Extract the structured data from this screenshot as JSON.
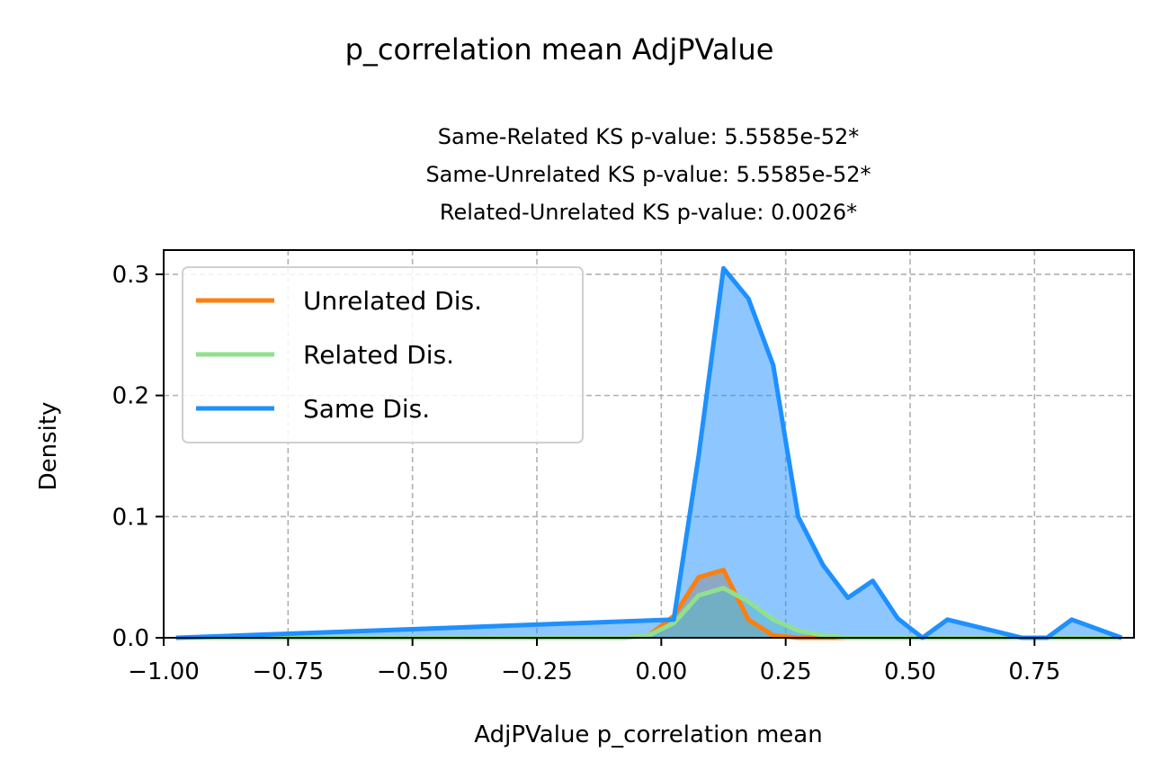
{
  "chart_data": {
    "type": "area",
    "title": "p_correlation mean AdjPValue",
    "subtitle_lines": [
      "Same-Related KS p-value: 5.5585e-52*",
      "Same-Unrelated KS p-value: 5.5585e-52*",
      "Related-Unrelated KS p-value: 0.0026*"
    ],
    "xlabel": "AdjPValue p_correlation mean",
    "ylabel": "Density",
    "xlim": [
      -1.0,
      0.95
    ],
    "ylim": [
      0,
      0.32
    ],
    "xticks": [
      -1.0,
      -0.75,
      -0.5,
      -0.25,
      0.0,
      0.25,
      0.5,
      0.75
    ],
    "xtick_labels": [
      "−1.00",
      "−0.75",
      "−0.50",
      "−0.25",
      "0.00",
      "0.25",
      "0.50",
      "0.75"
    ],
    "yticks": [
      0.0,
      0.1,
      0.2,
      0.3
    ],
    "ytick_labels": [
      "0.0",
      "0.1",
      "0.2",
      "0.3"
    ],
    "grid": true,
    "legend_position": "upper-left",
    "series": [
      {
        "name": "Unrelated Dis.",
        "color": "#ff7f0e",
        "fill": "#ff7f0e",
        "x": [
          -0.975,
          -0.075,
          -0.025,
          0.025,
          0.075,
          0.125,
          0.175,
          0.225,
          0.275,
          0.325,
          0.925
        ],
        "y": [
          0.0,
          0.0,
          0.002,
          0.018,
          0.05,
          0.056,
          0.015,
          0.002,
          0.0,
          0.0,
          0.0
        ]
      },
      {
        "name": "Related Dis.",
        "color": "#90e090",
        "fill": "#90e090",
        "x": [
          -0.975,
          -0.075,
          -0.025,
          0.025,
          0.075,
          0.125,
          0.175,
          0.225,
          0.275,
          0.325,
          0.375,
          0.925
        ],
        "y": [
          0.0,
          0.0,
          0.002,
          0.012,
          0.035,
          0.041,
          0.03,
          0.015,
          0.006,
          0.002,
          0.0,
          0.0
        ]
      },
      {
        "name": "Same Dis.",
        "color": "#1e90ff",
        "fill": "#1e90ff",
        "x": [
          -0.975,
          0.025,
          0.075,
          0.125,
          0.175,
          0.225,
          0.275,
          0.325,
          0.375,
          0.425,
          0.475,
          0.525,
          0.575,
          0.725,
          0.775,
          0.825,
          0.925
        ],
        "y": [
          0.0,
          0.015,
          0.15,
          0.305,
          0.28,
          0.225,
          0.1,
          0.06,
          0.033,
          0.047,
          0.016,
          0.0,
          0.015,
          0.0,
          0.0,
          0.015,
          0.0
        ]
      }
    ]
  }
}
